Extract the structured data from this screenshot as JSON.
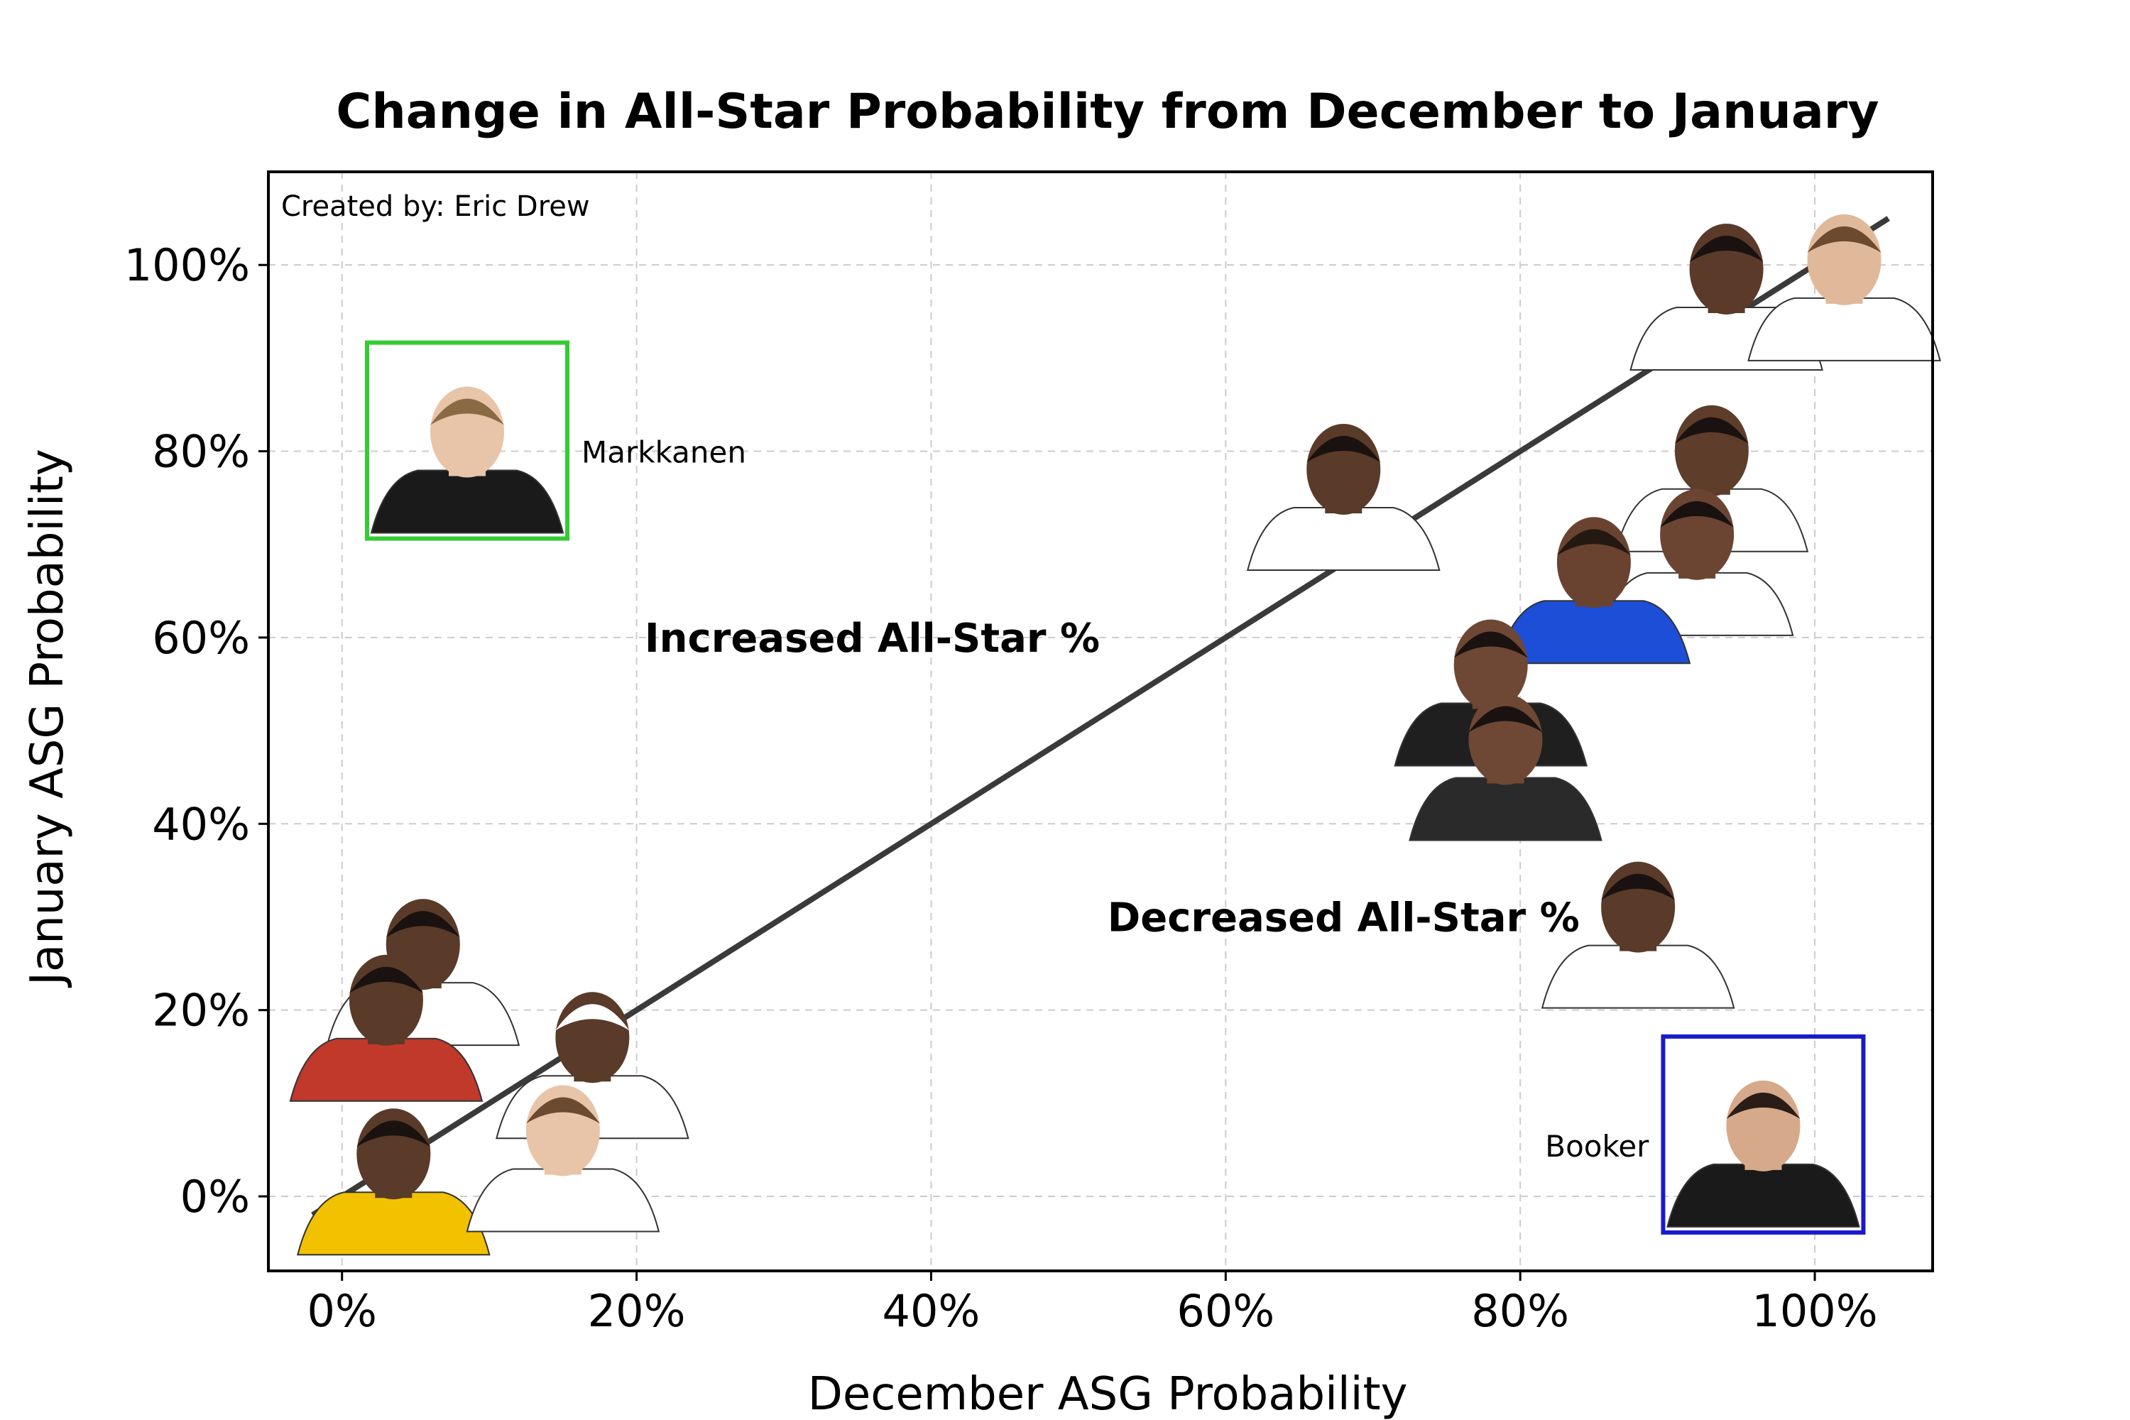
{
  "chart_data": {
    "type": "scatter",
    "title": "Change in All-Star Probability from December to January",
    "xlabel": "December ASG Probability",
    "ylabel": "January ASG Probability",
    "xlim": [
      -0.05,
      1.08
    ],
    "ylim": [
      -0.08,
      1.1
    ],
    "xticks": [
      0,
      0.2,
      0.4,
      0.6,
      0.8,
      1.0
    ],
    "xtick_labels": [
      "0%",
      "20%",
      "40%",
      "60%",
      "80%",
      "100%"
    ],
    "yticks": [
      0,
      0.2,
      0.4,
      0.6,
      0.8,
      1.0
    ],
    "ytick_labels": [
      "0%",
      "20%",
      "40%",
      "60%",
      "80%",
      "100%"
    ],
    "grid": true,
    "credit": "Created by: Eric Drew",
    "reference_line": {
      "x": [
        -0.02,
        1.05
      ],
      "y": [
        -0.02,
        1.05
      ]
    },
    "region_labels": [
      {
        "text": "Increased All-Star %",
        "x": 0.36,
        "y": 0.6
      },
      {
        "text": "Decreased All-Star %",
        "x": 0.68,
        "y": 0.3
      }
    ],
    "points": [
      {
        "label": "Markkanen",
        "x": 0.085,
        "y": 0.8,
        "highlight": "#33cc33",
        "annotated": true,
        "jersey": "#1a1a1a",
        "skin": "#e8c4a8",
        "hair": "#8a6a44"
      },
      {
        "label": "Booker",
        "x": 0.965,
        "y": 0.055,
        "highlight": "#1a1acc",
        "annotated": true,
        "jersey": "#1a1a1a",
        "skin": "#d6a98a",
        "hair": "#2a1d17"
      },
      {
        "label": "",
        "x": 0.94,
        "y": 0.975,
        "highlight": "",
        "annotated": false,
        "jersey": "#ffffff",
        "skin": "#5b3a2a",
        "hair": "#1a1210"
      },
      {
        "label": "",
        "x": 1.02,
        "y": 0.985,
        "highlight": "",
        "annotated": false,
        "jersey": "#ffffff",
        "skin": "#e0b99a",
        "hair": "#6b4a30"
      },
      {
        "label": "",
        "x": 0.68,
        "y": 0.76,
        "highlight": "",
        "annotated": false,
        "jersey": "#ffffff",
        "skin": "#5a3a28",
        "hair": "#1a1210"
      },
      {
        "label": "",
        "x": 0.93,
        "y": 0.78,
        "highlight": "",
        "annotated": false,
        "jersey": "#ffffff",
        "skin": "#5e3d2b",
        "hair": "#1a1210"
      },
      {
        "label": "",
        "x": 0.92,
        "y": 0.69,
        "highlight": "",
        "annotated": false,
        "jersey": "#ffffff",
        "skin": "#6b4532",
        "hair": "#1a1210"
      },
      {
        "label": "",
        "x": 0.85,
        "y": 0.66,
        "highlight": "",
        "annotated": false,
        "jersey": "#1d4ed8",
        "skin": "#6a4330",
        "hair": "#241812"
      },
      {
        "label": "",
        "x": 0.78,
        "y": 0.55,
        "highlight": "",
        "annotated": false,
        "jersey": "#1f1f1f",
        "skin": "#6e4834",
        "hair": "#1a1210"
      },
      {
        "label": "",
        "x": 0.79,
        "y": 0.47,
        "highlight": "",
        "annotated": false,
        "jersey": "#2a2a2a",
        "skin": "#6e4834",
        "hair": "#1a1210"
      },
      {
        "label": "",
        "x": 0.88,
        "y": 0.29,
        "highlight": "",
        "annotated": false,
        "jersey": "#ffffff",
        "skin": "#5a3a28",
        "hair": "#1a1210"
      },
      {
        "label": "",
        "x": 0.055,
        "y": 0.25,
        "highlight": "",
        "annotated": false,
        "jersey": "#ffffff",
        "skin": "#5a3a28",
        "hair": "#1a1210"
      },
      {
        "label": "",
        "x": 0.03,
        "y": 0.19,
        "highlight": "",
        "annotated": false,
        "jersey": "#c0392b",
        "skin": "#5a3a28",
        "hair": "#1a1210"
      },
      {
        "label": "",
        "x": 0.17,
        "y": 0.15,
        "highlight": "",
        "annotated": false,
        "jersey": "#ffffff",
        "skin": "#5a3a28",
        "hair": "#ffffff"
      },
      {
        "label": "",
        "x": 0.035,
        "y": 0.025,
        "highlight": "",
        "annotated": false,
        "jersey": "#f2c200",
        "skin": "#5a3a28",
        "hair": "#1a1210"
      },
      {
        "label": "",
        "x": 0.15,
        "y": 0.05,
        "highlight": "",
        "annotated": false,
        "jersey": "#ffffff",
        "skin": "#e8c4a8",
        "hair": "#6b4a30"
      }
    ]
  }
}
